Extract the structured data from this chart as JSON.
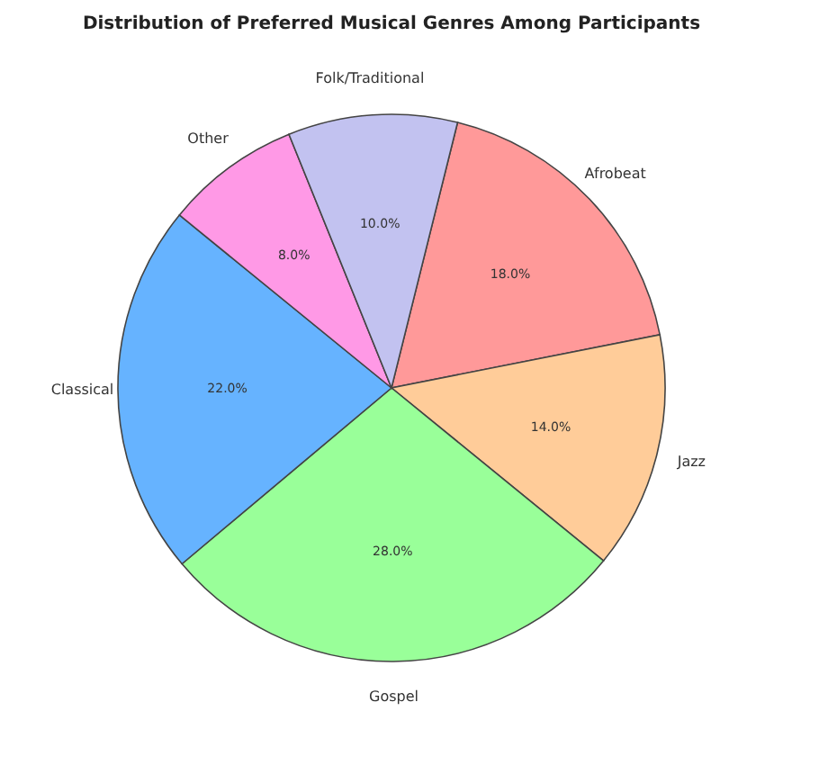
{
  "chart_data": {
    "type": "pie",
    "title": "Distribution of Preferred Musical Genres Among Participants",
    "categories": [
      "Afrobeat",
      "Jazz",
      "Gospel",
      "Classical",
      "Other",
      "Folk/Traditional"
    ],
    "values": [
      18.0,
      14.0,
      28.0,
      22.0,
      8.0,
      10.0
    ],
    "colors": [
      "#ff9999",
      "#ffcc99",
      "#99ff99",
      "#66b3ff",
      "#ff99e6",
      "#c2c2f0"
    ],
    "value_labels": [
      "18.0%",
      "14.0%",
      "28.0%",
      "22.0%",
      "8.0%",
      "10.0%"
    ]
  }
}
